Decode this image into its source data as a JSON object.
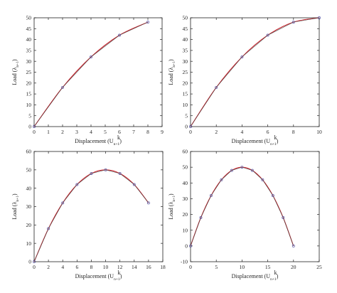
{
  "chart_data": [
    {
      "type": "line",
      "xlabel": "Displacement",
      "ylabel": "Load",
      "xlim": [
        0,
        9
      ],
      "ylim": [
        0,
        50
      ],
      "xticks": [
        0,
        1,
        2,
        3,
        4,
        5,
        6,
        7,
        8,
        9
      ],
      "yticks": [
        0,
        5,
        10,
        15,
        20,
        25,
        30,
        35,
        40,
        45,
        50
      ],
      "x": [
        0,
        2,
        4,
        6,
        8
      ],
      "y": [
        0,
        18,
        32,
        42,
        48
      ],
      "curve_color": "#c8232c",
      "marker_color": "#5a5aa8"
    },
    {
      "type": "line",
      "xlabel": "Displacement",
      "ylabel": "Load",
      "xlim": [
        0,
        10
      ],
      "ylim": [
        0,
        50
      ],
      "xticks": [
        0,
        2,
        4,
        6,
        8,
        10
      ],
      "yticks": [
        0,
        5,
        10,
        15,
        20,
        25,
        30,
        35,
        40,
        45,
        50
      ],
      "x": [
        0,
        2,
        4,
        6,
        8,
        10
      ],
      "y": [
        0,
        18,
        32,
        42,
        48,
        50
      ],
      "curve_color": "#c8232c",
      "marker_color": "#5a5aa8"
    },
    {
      "type": "line",
      "xlabel": "Displacement",
      "ylabel": "Load",
      "xlim": [
        0,
        18
      ],
      "ylim": [
        0,
        60
      ],
      "xticks": [
        0,
        2,
        4,
        6,
        8,
        10,
        12,
        14,
        16,
        18
      ],
      "yticks": [
        0,
        10,
        20,
        30,
        40,
        50,
        60
      ],
      "x": [
        0,
        2,
        4,
        6,
        8,
        10,
        12,
        14,
        16
      ],
      "y": [
        0,
        18,
        32,
        42,
        48,
        50,
        48,
        42,
        32
      ],
      "curve_color": "#c8232c",
      "marker_color": "#5a5aa8"
    },
    {
      "type": "line",
      "xlabel": "Displacement",
      "ylabel": "Load",
      "xlim": [
        0,
        25
      ],
      "ylim": [
        -10,
        60
      ],
      "xticks": [
        0,
        5,
        10,
        15,
        20,
        25
      ],
      "yticks": [
        -10,
        0,
        10,
        20,
        30,
        40,
        50,
        60
      ],
      "x": [
        0,
        2,
        4,
        6,
        8,
        10,
        12,
        14,
        16,
        18,
        20
      ],
      "y": [
        0,
        18,
        32,
        42,
        48,
        50,
        48,
        42,
        32,
        18,
        0
      ],
      "curve_color": "#c8232c",
      "marker_color": "#5a5aa8"
    }
  ]
}
